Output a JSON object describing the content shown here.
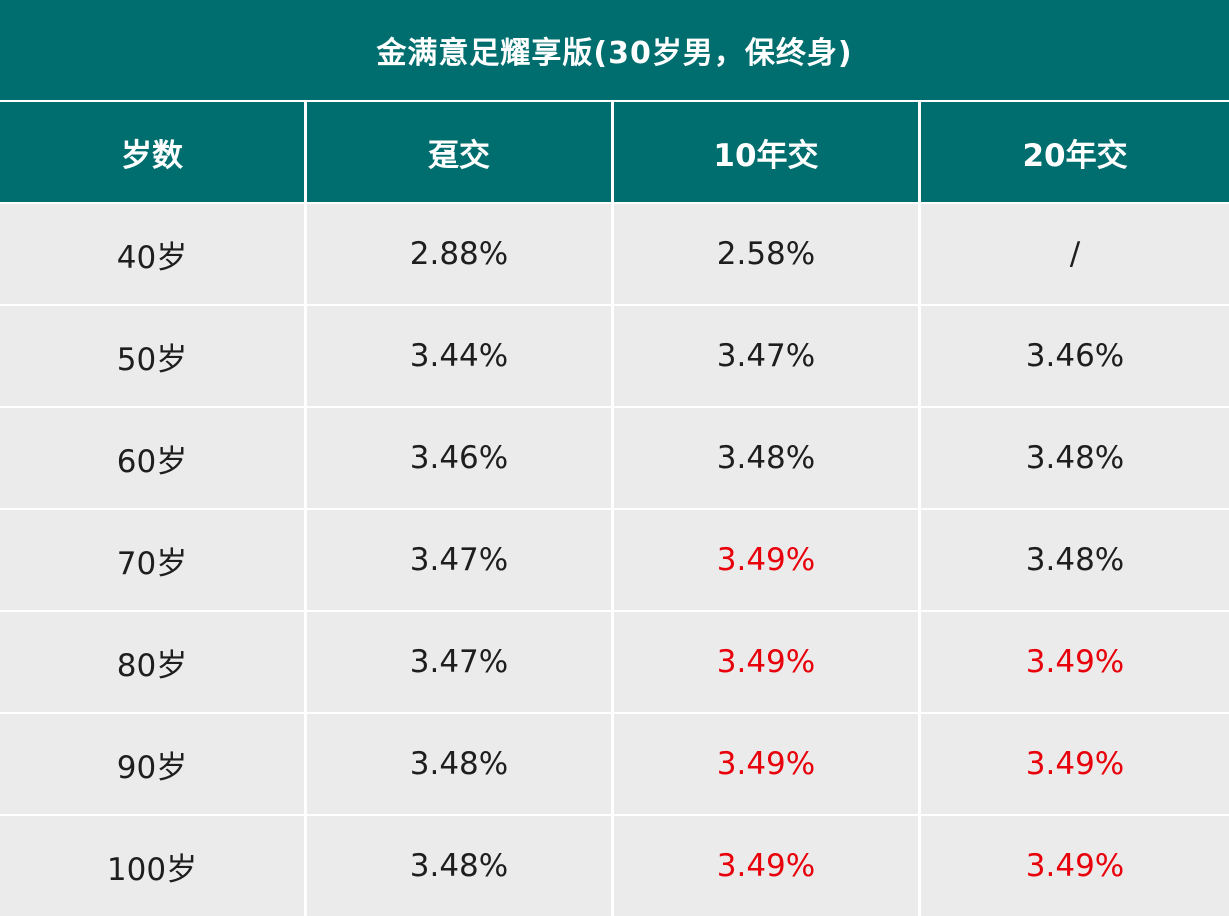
{
  "title": "金满意足耀享版(30岁男，保终身)",
  "headers": [
    "岁数",
    "趸交",
    "10年交",
    "20年交"
  ],
  "rows": [
    {
      "age": "40岁",
      "single": "2.88%",
      "y10": "2.58%",
      "y20": "/",
      "y10_highlight": false,
      "y20_highlight": false
    },
    {
      "age": "50岁",
      "single": "3.44%",
      "y10": "3.47%",
      "y20": "3.46%",
      "y10_highlight": false,
      "y20_highlight": false
    },
    {
      "age": "60岁",
      "single": "3.46%",
      "y10": "3.48%",
      "y20": "3.48%",
      "y10_highlight": false,
      "y20_highlight": false
    },
    {
      "age": "70岁",
      "single": "3.47%",
      "y10": "3.49%",
      "y20": "3.48%",
      "y10_highlight": true,
      "y20_highlight": false
    },
    {
      "age": "80岁",
      "single": "3.47%",
      "y10": "3.49%",
      "y20": "3.49%",
      "y10_highlight": true,
      "y20_highlight": true
    },
    {
      "age": "90岁",
      "single": "3.48%",
      "y10": "3.49%",
      "y20": "3.49%",
      "y10_highlight": true,
      "y20_highlight": true
    },
    {
      "age": "100岁",
      "single": "3.48%",
      "y10": "3.49%",
      "y20": "3.49%",
      "y10_highlight": true,
      "y20_highlight": true
    }
  ],
  "colors": {
    "header_bg": "#006e6e",
    "cell_bg": "#ebebeb",
    "highlight_text": "#e8000b"
  }
}
